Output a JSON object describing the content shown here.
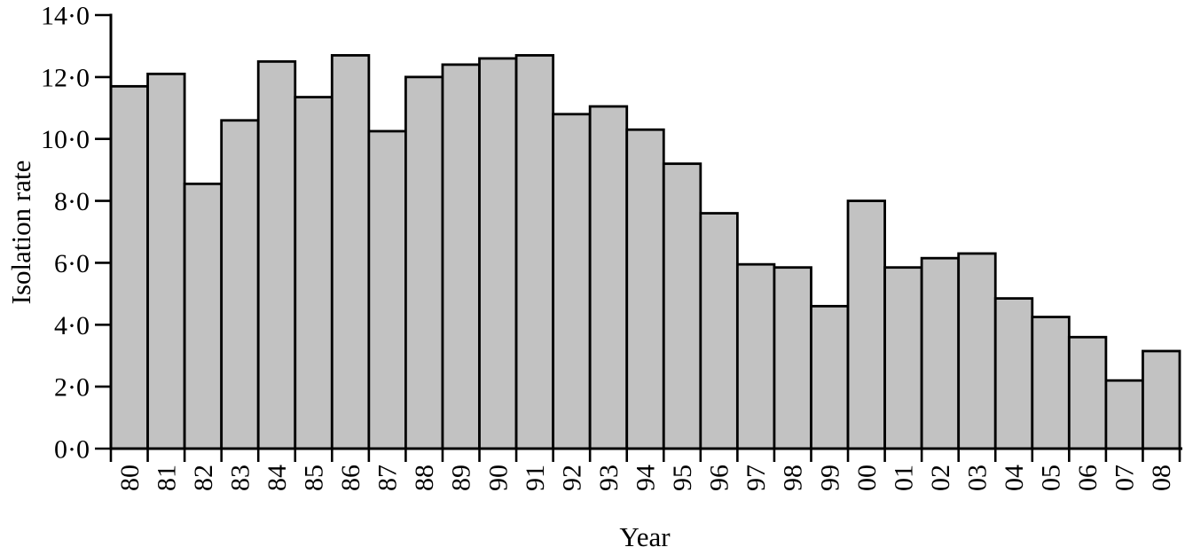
{
  "chart_data": {
    "type": "bar",
    "title": "",
    "xlabel": "Year",
    "ylabel": "Isolation rate",
    "categories": [
      "80",
      "81",
      "82",
      "83",
      "84",
      "85",
      "86",
      "87",
      "88",
      "89",
      "90",
      "91",
      "92",
      "93",
      "94",
      "95",
      "96",
      "97",
      "98",
      "99",
      "00",
      "01",
      "02",
      "03",
      "04",
      "05",
      "06",
      "07",
      "08"
    ],
    "values": [
      11.7,
      12.1,
      8.55,
      10.6,
      12.5,
      11.35,
      12.7,
      10.25,
      12.0,
      12.4,
      12.6,
      12.7,
      10.8,
      11.05,
      10.3,
      9.2,
      7.6,
      5.95,
      5.85,
      4.6,
      8.0,
      5.85,
      6.15,
      6.3,
      4.85,
      4.25,
      3.6,
      2.2,
      3.15
    ],
    "ylim": [
      0,
      14
    ],
    "ytick_step": 2,
    "ytick_labels": [
      "0·0",
      "2·0",
      "4·0",
      "6·0",
      "8·0",
      "10·0",
      "12·0",
      "14·0"
    ],
    "x_tick_style": "ticks at every bar boundary, labels rotated 90deg CCW under bar centers",
    "grid": false,
    "legend": "none",
    "bar_fill": "#c2c2c2",
    "bar_stroke": "#000000",
    "axis_color": "#000000",
    "background": "#ffffff",
    "text_color": "#000000"
  }
}
